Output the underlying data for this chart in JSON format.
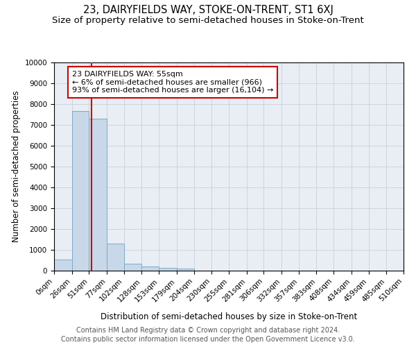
{
  "title": "23, DAIRYFIELDS WAY, STOKE-ON-TRENT, ST1 6XJ",
  "subtitle": "Size of property relative to semi-detached houses in Stoke-on-Trent",
  "xlabel": "Distribution of semi-detached houses by size in Stoke-on-Trent",
  "ylabel": "Number of semi-detached properties",
  "footnote1": "Contains HM Land Registry data © Crown copyright and database right 2024.",
  "footnote2": "Contains public sector information licensed under the Open Government Licence v3.0.",
  "annotation_title": "23 DAIRYFIELDS WAY: 55sqm",
  "annotation_line1": "← 6% of semi-detached houses are smaller (966)",
  "annotation_line2": "93% of semi-detached houses are larger (16,104) →",
  "property_size": 55,
  "bin_edges": [
    0,
    26,
    51,
    77,
    102,
    128,
    153,
    179,
    204,
    230,
    255,
    281,
    306,
    332,
    357,
    383,
    408,
    434,
    459,
    485,
    510
  ],
  "bin_labels": [
    "0sqm",
    "26sqm",
    "51sqm",
    "77sqm",
    "102sqm",
    "128sqm",
    "153sqm",
    "179sqm",
    "204sqm",
    "230sqm",
    "255sqm",
    "281sqm",
    "306sqm",
    "332sqm",
    "357sqm",
    "383sqm",
    "408sqm",
    "434sqm",
    "459sqm",
    "485sqm",
    "510sqm"
  ],
  "bar_heights": [
    550,
    7650,
    7300,
    1300,
    350,
    200,
    150,
    100,
    0,
    0,
    0,
    0,
    0,
    0,
    0,
    0,
    0,
    0,
    0,
    0
  ],
  "bar_color": "#c8d8e8",
  "bar_edge_color": "#7aaac8",
  "vline_color": "#cc0000",
  "vline_x": 55,
  "ylim": [
    0,
    10000
  ],
  "yticks": [
    0,
    1000,
    2000,
    3000,
    4000,
    5000,
    6000,
    7000,
    8000,
    9000,
    10000
  ],
  "grid_color": "#c8d0dc",
  "bg_color": "#e8eef4",
  "annotation_box_color": "#ffffff",
  "annotation_box_edge": "#cc0000",
  "title_fontsize": 10.5,
  "subtitle_fontsize": 9.5,
  "axis_label_fontsize": 8.5,
  "tick_fontsize": 7.5,
  "annotation_fontsize": 8,
  "footnote_fontsize": 7
}
